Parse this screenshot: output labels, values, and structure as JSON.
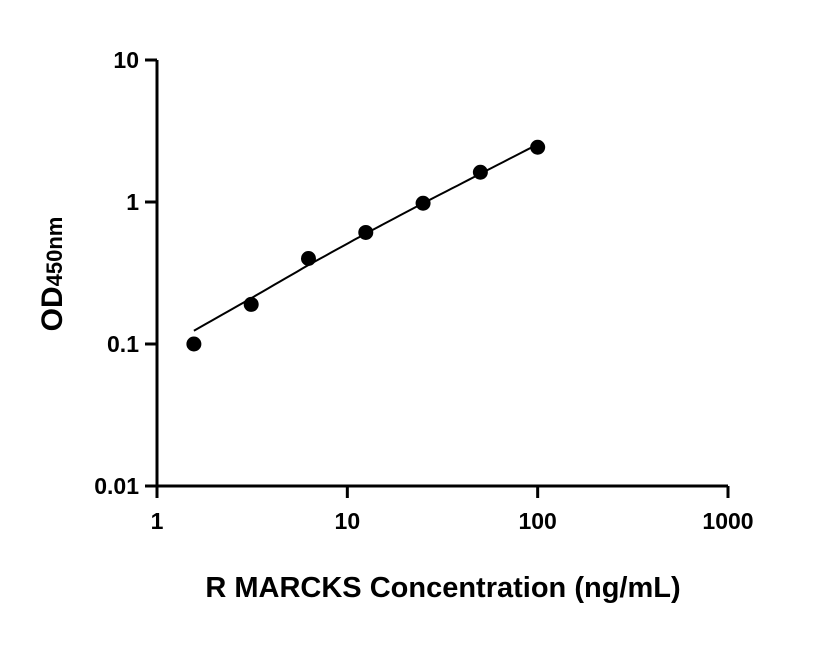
{
  "chart_data": {
    "type": "scatter",
    "title": "",
    "xlabel": "R MARCKS Concentration (ng/mL)",
    "ylabel_main": "OD",
    "ylabel_sub": "450nm",
    "x_scale": "log",
    "y_scale": "log",
    "xlim": [
      1,
      1000
    ],
    "ylim": [
      0.01,
      10
    ],
    "x_ticks": [
      "1",
      "10",
      "100",
      "1000"
    ],
    "y_ticks": [
      "0.01",
      "0.1",
      "1",
      "10"
    ],
    "grid": false,
    "points": {
      "x": [
        1.5625,
        3.125,
        6.25,
        12.5,
        25,
        50,
        100
      ],
      "y": [
        0.1,
        0.19,
        0.4,
        0.61,
        0.98,
        1.62,
        2.43
      ]
    },
    "fit_curve": {
      "x": [
        1.5625,
        3.125,
        6.25,
        12.5,
        25,
        50,
        100
      ],
      "y": [
        0.124,
        0.21,
        0.36,
        0.6,
        0.98,
        1.58,
        2.55
      ]
    },
    "colors": {
      "points": "#000000",
      "line": "#000000"
    }
  }
}
